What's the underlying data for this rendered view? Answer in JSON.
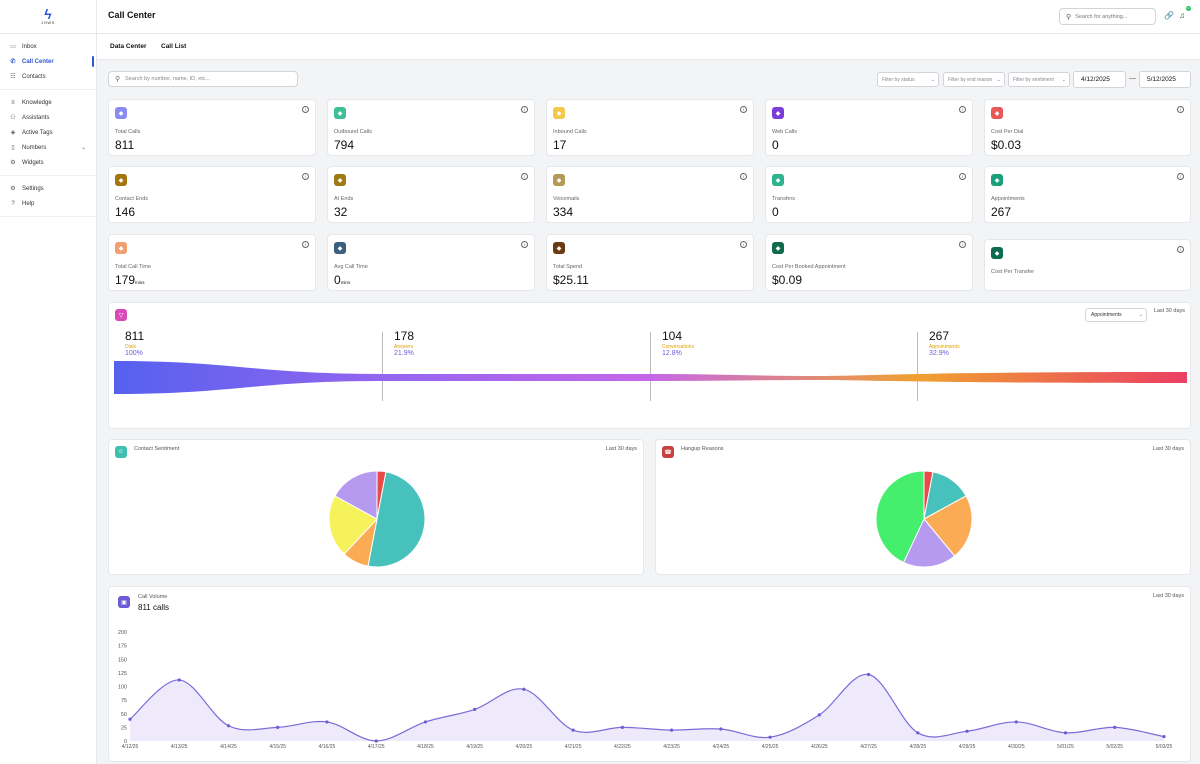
{
  "brand": {
    "logo_text": "JOWS"
  },
  "sidebar": {
    "groups": [
      [
        {
          "label": "Inbox",
          "icon": "inbox-icon"
        },
        {
          "label": "Call Center",
          "icon": "phone-icon",
          "active": true
        },
        {
          "label": "Contacts",
          "icon": "contacts-icon"
        }
      ],
      [
        {
          "label": "Knowledge",
          "icon": "database-icon"
        },
        {
          "label": "Assistants",
          "icon": "users-icon"
        },
        {
          "label": "Active Tags",
          "icon": "tag-icon"
        },
        {
          "label": "Numbers",
          "icon": "mobile-icon",
          "expandable": true
        },
        {
          "label": "Widgets",
          "icon": "widgets-icon"
        }
      ],
      [
        {
          "label": "Settings",
          "icon": "gear-icon"
        },
        {
          "label": "Help",
          "icon": "help-icon"
        }
      ]
    ]
  },
  "header": {
    "title": "Call Center",
    "search_placeholder": "Search for anything...",
    "notification_count": "0"
  },
  "tabs": [
    "Data Center",
    "Call List"
  ],
  "filters": {
    "search_placeholder": "Search by number, name, ID, etc...",
    "status": "Filter by status",
    "end_reason": "Filter by end reason",
    "sentiment": "Filter by sentiment",
    "date_from": "4/12/2025",
    "date_to": "5/12/2025",
    "separator": "—"
  },
  "stats": [
    {
      "label": "Total Calls",
      "value": "811",
      "color": "#8b8cf0",
      "icon": "phone-icon"
    },
    {
      "label": "Outbound Calls",
      "value": "794",
      "color": "#3fbf97",
      "icon": "phone-outgoing-icon"
    },
    {
      "label": "Inbound Calls",
      "value": "17",
      "color": "#f2c94c",
      "icon": "phone-incoming-icon"
    },
    {
      "label": "Web Calls",
      "value": "0",
      "color": "#7b3fd9",
      "icon": "globe-icon"
    },
    {
      "label": "Cost Per Dial",
      "value": "$0.03",
      "color": "#e85858",
      "icon": "phone-icon"
    },
    {
      "label": "Contact Ends",
      "value": "146",
      "color": "#a37410",
      "icon": "user-icon"
    },
    {
      "label": "AI Ends",
      "value": "32",
      "color": "#9e7a12",
      "icon": "chip-icon"
    },
    {
      "label": "Voicemails",
      "value": "334",
      "color": "#b59a55",
      "icon": "warning-icon"
    },
    {
      "label": "Transfers",
      "value": "0",
      "color": "#2db38d",
      "icon": "transfer-icon"
    },
    {
      "label": "Appointments",
      "value": "267",
      "color": "#1aa07a",
      "icon": "calendar-icon"
    },
    {
      "label": "Total Call Time",
      "value": "179",
      "unit": "mins",
      "color": "#f0a070",
      "icon": "clock-icon"
    },
    {
      "label": "Avg Call Time",
      "value": "0",
      "unit": "mins",
      "color": "#3b6080",
      "icon": "timer-icon"
    },
    {
      "label": "Total Spend",
      "value": "$25.11",
      "color": "#6b3a10",
      "icon": "wallet-icon"
    },
    {
      "label": "Cost Per Booked Appointment",
      "value": "$0.09",
      "color": "#0f6b4a",
      "icon": "card-icon"
    },
    {
      "label": "Cost Per Transfer",
      "value": "",
      "color": "#0f6b50",
      "icon": "card-icon"
    }
  ],
  "funnel": {
    "icon": "funnel-icon",
    "color": "#d94ab8",
    "period": "Last 30 days",
    "select": "Appointments",
    "stages": [
      {
        "value": "811",
        "name": "Dials",
        "pct": "100%"
      },
      {
        "value": "178",
        "name": "Answers",
        "pct": "21.9%"
      },
      {
        "value": "104",
        "name": "Conversations",
        "pct": "12.8%"
      },
      {
        "value": "267",
        "name": "Appointments",
        "pct": "32.9%"
      }
    ]
  },
  "sentiment": {
    "title": "Contact Sentiment",
    "period": "Last 30 days",
    "color": "#3fbfb0",
    "icon": "smile-icon",
    "chart_data": {
      "type": "pie",
      "slices": [
        {
          "value": 3,
          "color": "#e84a4a"
        },
        {
          "value": 50,
          "color": "#46c1bb"
        },
        {
          "value": 9,
          "color": "#fcab55"
        },
        {
          "value": 21,
          "color": "#f6f25b"
        },
        {
          "value": 17,
          "color": "#b59af0"
        }
      ]
    }
  },
  "hangup": {
    "title": "Hangup Reasons",
    "period": "Last 30 days",
    "color": "#c84040",
    "icon": "phone-hangup-icon",
    "chart_data": {
      "type": "pie",
      "slices": [
        {
          "value": 3,
          "color": "#e84a4a"
        },
        {
          "value": 14,
          "color": "#46c1bb"
        },
        {
          "value": 22,
          "color": "#fcab55"
        },
        {
          "value": 18,
          "color": "#b59af0"
        },
        {
          "value": 43,
          "color": "#46ee6e"
        }
      ]
    }
  },
  "volume": {
    "title": "Call Volume",
    "total": "811 calls",
    "period": "Last 30 days",
    "color": "#6b5bd6",
    "icon": "chart-icon",
    "chart_data": {
      "type": "area",
      "ylim": [
        0,
        200
      ],
      "yticks": [
        "200",
        "175",
        "150",
        "125",
        "100",
        "75",
        "50",
        "25",
        "0"
      ],
      "x": [
        "4/12/25",
        "4/13/25",
        "4/14/25",
        "4/15/25",
        "4/16/25",
        "4/17/25",
        "4/18/25",
        "4/19/25",
        "4/20/25",
        "4/21/25",
        "4/22/25",
        "4/23/25",
        "4/24/25",
        "4/25/25",
        "4/26/25",
        "4/27/25",
        "4/28/25",
        "4/29/25",
        "4/30/25",
        "5/01/25",
        "5/02/25",
        "5/03/25"
      ],
      "series": [
        {
          "values": [
            40,
            112,
            28,
            25,
            35,
            0,
            35,
            58,
            95,
            20,
            25,
            20,
            22,
            7,
            48,
            122,
            15,
            18,
            35,
            15,
            25,
            8
          ]
        }
      ]
    }
  }
}
